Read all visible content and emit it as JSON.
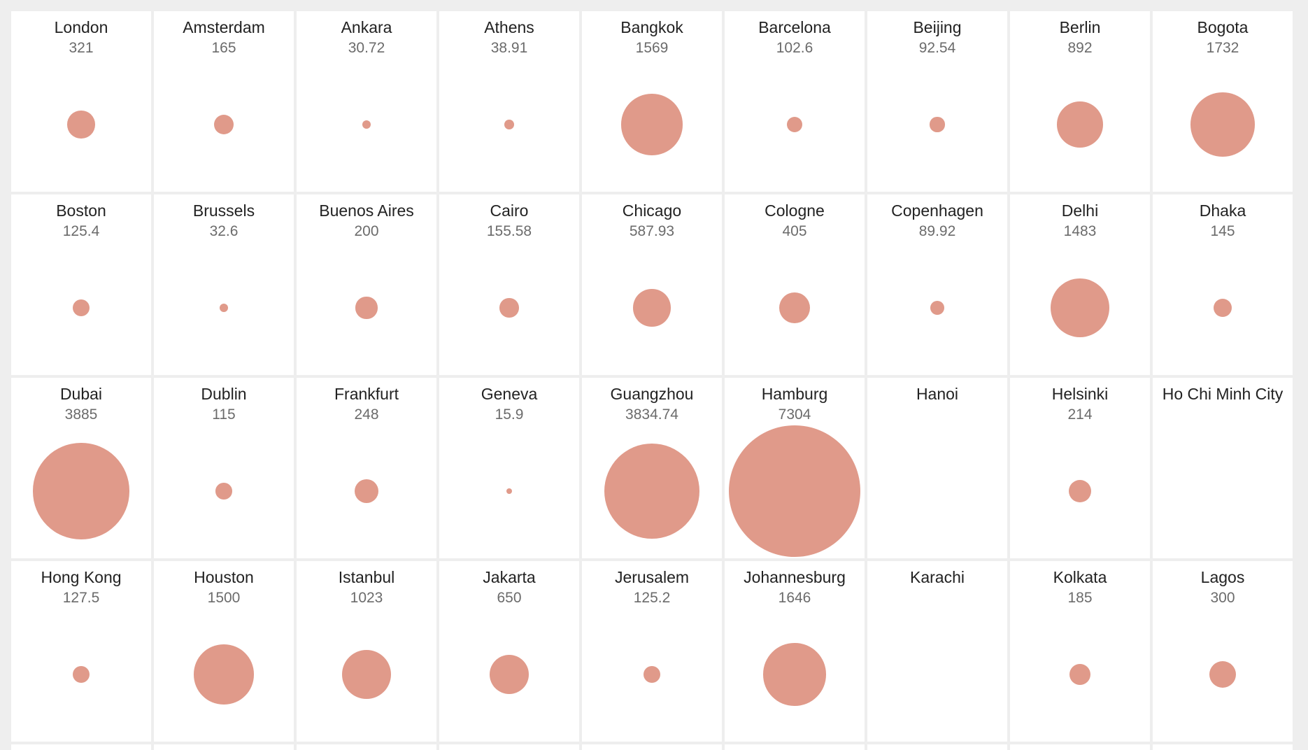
{
  "chart_data": {
    "type": "bubble-grid",
    "title": "",
    "bubble_color": "#e09a8a",
    "cells": [
      {
        "name": "London",
        "value": 321
      },
      {
        "name": "Amsterdam",
        "value": 165
      },
      {
        "name": "Ankara",
        "value": 30.72
      },
      {
        "name": "Athens",
        "value": 38.91
      },
      {
        "name": "Bangkok",
        "value": 1569
      },
      {
        "name": "Barcelona",
        "value": 102.6
      },
      {
        "name": "Beijing",
        "value": 92.54
      },
      {
        "name": "Berlin",
        "value": 892
      },
      {
        "name": "Bogota",
        "value": 1732
      },
      {
        "name": "Boston",
        "value": 125.4
      },
      {
        "name": "Brussels",
        "value": 32.6
      },
      {
        "name": "Buenos Aires",
        "value": 200
      },
      {
        "name": "Cairo",
        "value": 155.58
      },
      {
        "name": "Chicago",
        "value": 587.93
      },
      {
        "name": "Cologne",
        "value": 405
      },
      {
        "name": "Copenhagen",
        "value": 89.92
      },
      {
        "name": "Delhi",
        "value": 1483
      },
      {
        "name": "Dhaka",
        "value": 145
      },
      {
        "name": "Dubai",
        "value": 3885
      },
      {
        "name": "Dublin",
        "value": 115
      },
      {
        "name": "Frankfurt",
        "value": 248
      },
      {
        "name": "Geneva",
        "value": 15.9
      },
      {
        "name": "Guangzhou",
        "value": 3834.74
      },
      {
        "name": "Hamburg",
        "value": 7304
      },
      {
        "name": "Hanoi",
        "value": null
      },
      {
        "name": "Helsinki",
        "value": 214
      },
      {
        "name": "Ho Chi Minh City",
        "value": null
      },
      {
        "name": "Hong Kong",
        "value": 127.5
      },
      {
        "name": "Houston",
        "value": 1500
      },
      {
        "name": "Istanbul",
        "value": 1023
      },
      {
        "name": "Jakarta",
        "value": 650
      },
      {
        "name": "Jerusalem",
        "value": 125.2
      },
      {
        "name": "Johannesburg",
        "value": 1646
      },
      {
        "name": "Karachi",
        "value": null
      },
      {
        "name": "Kolkata",
        "value": 185
      },
      {
        "name": "Lagos",
        "value": 300
      }
    ]
  }
}
